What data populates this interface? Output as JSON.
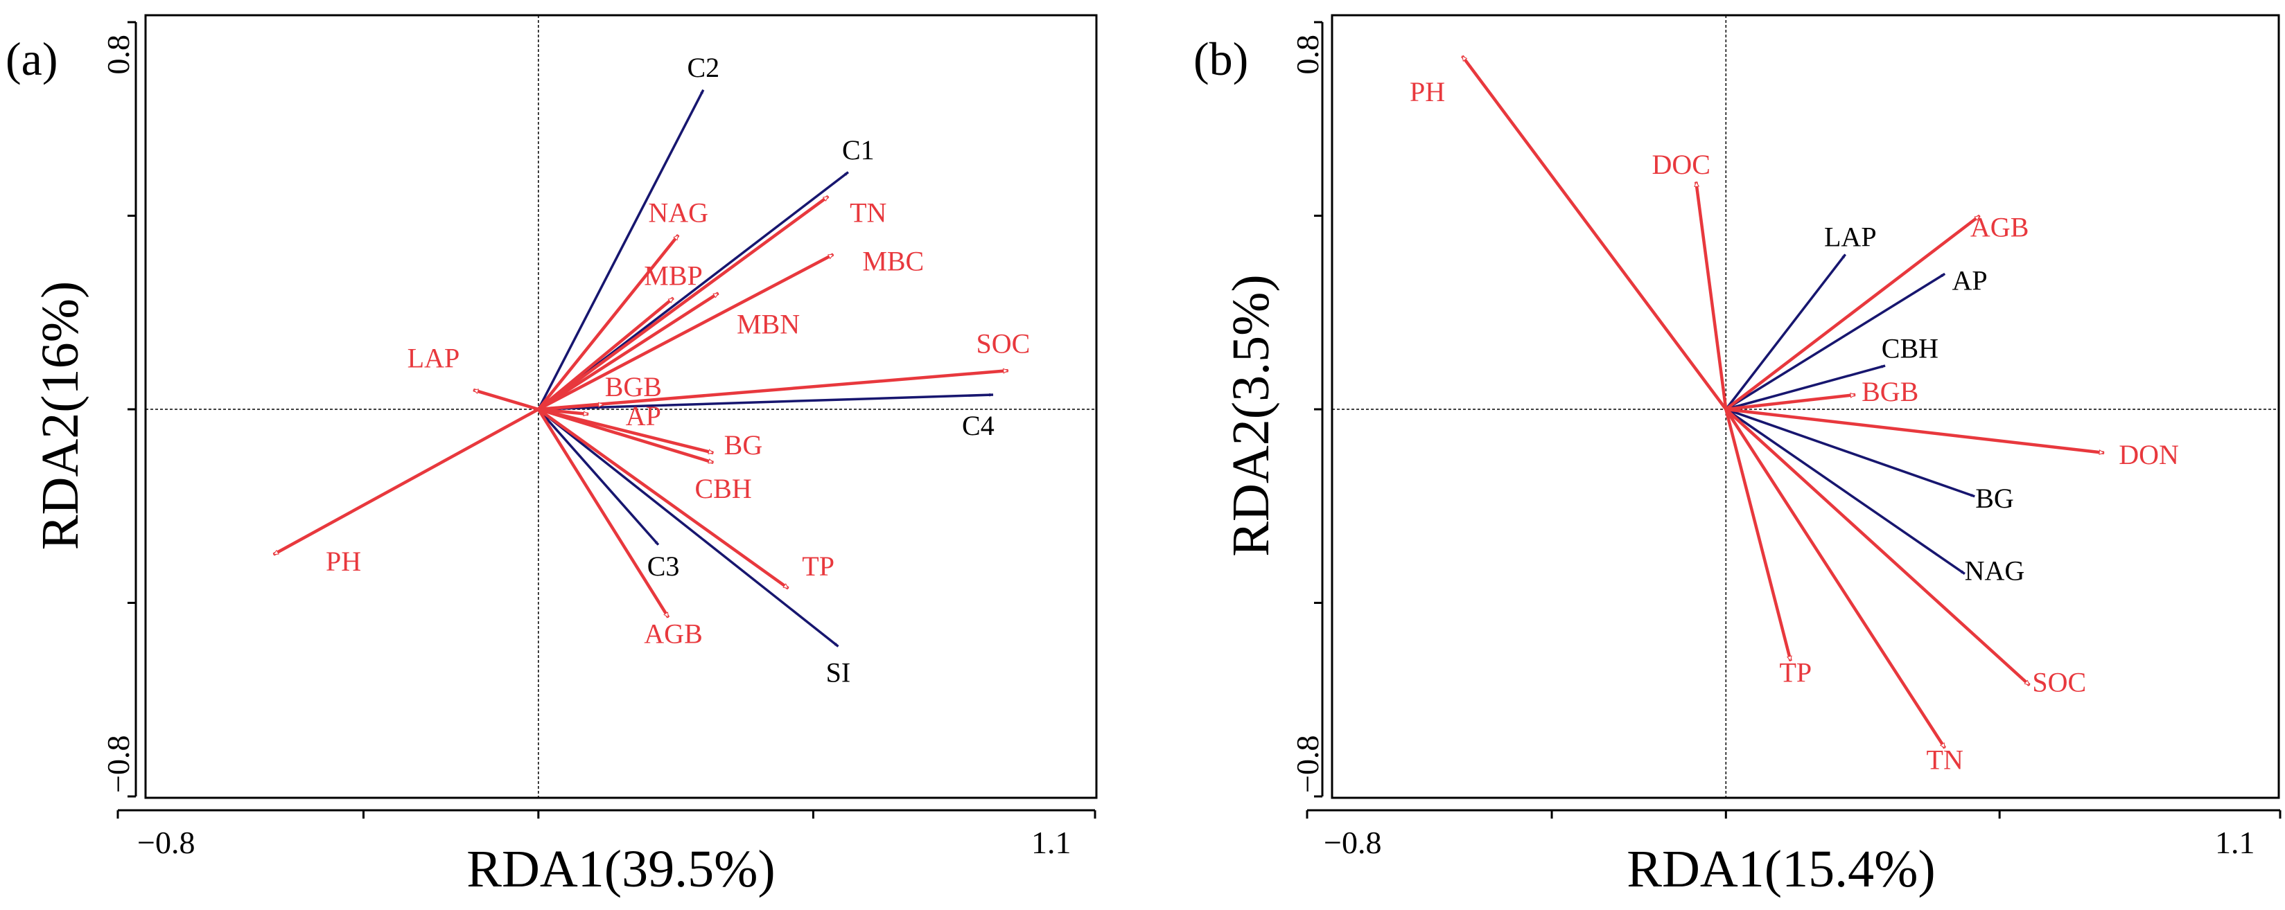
{
  "colors": {
    "environment": "#e8383d",
    "community": "#17166f",
    "axis": "#000000"
  },
  "chart_data": [
    {
      "type": "scatter",
      "subtype": "rda-biplot",
      "panel_label": "(a)",
      "xlabel": "RDA1(39.5%)",
      "ylabel": "RDA2(16%)",
      "xlim": [
        -0.8,
        1.1
      ],
      "ylim": [
        -0.8,
        0.8
      ],
      "x_tick_labels": [
        "−0.8",
        "1.1"
      ],
      "y_tick_labels": [
        "0.8",
        "−0.8"
      ],
      "grid": false,
      "vectors": [
        {
          "name": "C2",
          "x": 0.33,
          "y": 0.66,
          "group": "community",
          "label_x": 0.33,
          "label_y": 0.7
        },
        {
          "name": "C1",
          "x": 0.62,
          "y": 0.49,
          "group": "community",
          "label_x": 0.64,
          "label_y": 0.53
        },
        {
          "name": "C4",
          "x": 0.91,
          "y": 0.03,
          "group": "community",
          "label_x": 0.88,
          "label_y": -0.04
        },
        {
          "name": "C3",
          "x": 0.24,
          "y": -0.28,
          "group": "community",
          "label_x": 0.25,
          "label_y": -0.33
        },
        {
          "name": "SI",
          "x": 0.6,
          "y": -0.49,
          "group": "community",
          "label_x": 0.6,
          "label_y": -0.55
        },
        {
          "name": "TN",
          "x": 0.58,
          "y": 0.44,
          "group": "environment",
          "label_x": 0.66,
          "label_y": 0.4
        },
        {
          "name": "NAG",
          "x": 0.28,
          "y": 0.36,
          "group": "environment",
          "label_x": 0.28,
          "label_y": 0.4
        },
        {
          "name": "MBC",
          "x": 0.59,
          "y": 0.32,
          "group": "environment",
          "label_x": 0.71,
          "label_y": 0.3
        },
        {
          "name": "MBP",
          "x": 0.27,
          "y": 0.23,
          "group": "environment",
          "label_x": 0.27,
          "label_y": 0.27
        },
        {
          "name": "MBN",
          "x": 0.36,
          "y": 0.24,
          "group": "environment",
          "label_x": 0.46,
          "label_y": 0.17
        },
        {
          "name": "SOC",
          "x": 0.94,
          "y": 0.08,
          "group": "environment",
          "label_x": 0.93,
          "label_y": 0.13
        },
        {
          "name": "LAP",
          "x": -0.13,
          "y": 0.04,
          "group": "environment",
          "label_x": -0.21,
          "label_y": 0.1
        },
        {
          "name": "BGB",
          "x": 0.13,
          "y": 0.01,
          "group": "environment",
          "label_x": 0.19,
          "label_y": 0.04
        },
        {
          "name": "AP",
          "x": 0.1,
          "y": -0.01,
          "group": "environment",
          "label_x": 0.21,
          "label_y": -0.02
        },
        {
          "name": "BG",
          "x": 0.35,
          "y": -0.09,
          "group": "environment",
          "label_x": 0.41,
          "label_y": -0.08
        },
        {
          "name": "CBH",
          "x": 0.35,
          "y": -0.11,
          "group": "environment",
          "label_x": 0.37,
          "label_y": -0.17
        },
        {
          "name": "PH",
          "x": -0.53,
          "y": -0.3,
          "group": "environment",
          "label_x": -0.39,
          "label_y": -0.32
        },
        {
          "name": "TP",
          "x": 0.5,
          "y": -0.37,
          "group": "environment",
          "label_x": 0.56,
          "label_y": -0.33
        },
        {
          "name": "AGB",
          "x": 0.26,
          "y": -0.43,
          "group": "environment",
          "label_x": 0.27,
          "label_y": -0.47
        }
      ]
    },
    {
      "type": "scatter",
      "subtype": "rda-biplot",
      "panel_label": "(b)",
      "xlabel": "RDA1(15.4%)",
      "ylabel": "RDA2(3.5%)",
      "xlim": [
        -0.8,
        1.1
      ],
      "ylim": [
        -0.8,
        0.8
      ],
      "x_tick_labels": [
        "−0.8",
        "1.1"
      ],
      "y_tick_labels": [
        "0.8",
        "−0.8"
      ],
      "grid": false,
      "vectors": [
        {
          "name": "LAP",
          "x": 0.24,
          "y": 0.32,
          "group": "community",
          "label_x": 0.25,
          "label_y": 0.35
        },
        {
          "name": "AP",
          "x": 0.44,
          "y": 0.28,
          "group": "community",
          "label_x": 0.49,
          "label_y": 0.26
        },
        {
          "name": "CBH",
          "x": 0.32,
          "y": 0.09,
          "group": "community",
          "label_x": 0.37,
          "label_y": 0.12
        },
        {
          "name": "BG",
          "x": 0.5,
          "y": -0.18,
          "group": "community",
          "label_x": 0.54,
          "label_y": -0.19
        },
        {
          "name": "NAG",
          "x": 0.48,
          "y": -0.34,
          "group": "community",
          "label_x": 0.54,
          "label_y": -0.34
        },
        {
          "name": "PH",
          "x": -0.53,
          "y": 0.73,
          "group": "environment",
          "label_x": -0.6,
          "label_y": 0.65
        },
        {
          "name": "DOC",
          "x": -0.06,
          "y": 0.47,
          "group": "environment",
          "label_x": -0.09,
          "label_y": 0.5
        },
        {
          "name": "AGB",
          "x": 0.51,
          "y": 0.4,
          "group": "environment",
          "label_x": 0.55,
          "label_y": 0.37
        },
        {
          "name": "BGB",
          "x": 0.26,
          "y": 0.03,
          "group": "environment",
          "label_x": 0.33,
          "label_y": 0.03
        },
        {
          "name": "DON",
          "x": 0.76,
          "y": -0.09,
          "group": "environment",
          "label_x": 0.85,
          "label_y": -0.1
        },
        {
          "name": "SOC",
          "x": 0.61,
          "y": -0.57,
          "group": "environment",
          "label_x": 0.67,
          "label_y": -0.57
        },
        {
          "name": "TP",
          "x": 0.13,
          "y": -0.52,
          "group": "environment",
          "label_x": 0.14,
          "label_y": -0.55
        },
        {
          "name": "TN",
          "x": 0.44,
          "y": -0.7,
          "group": "environment",
          "label_x": 0.44,
          "label_y": -0.73
        }
      ]
    }
  ]
}
